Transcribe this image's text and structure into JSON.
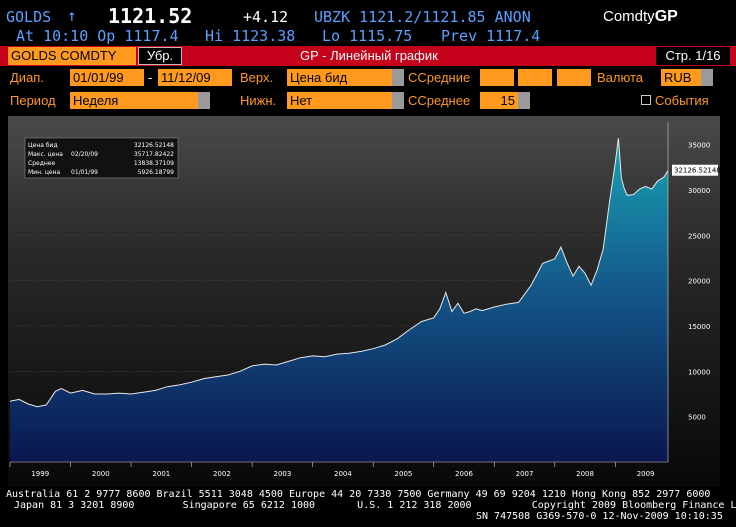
{
  "header": {
    "ticker": "GOLDS",
    "arrow": "↑",
    "price": "1121.52",
    "change": "+4.12",
    "source": "UBZK 1121.2/1121.85 ANON",
    "brand_prefix": "Comdty",
    "brand_func": "GP",
    "at_label": "At",
    "at_time": "10:10",
    "op_label": "Op",
    "op_value": "1117.4",
    "hi_label": "Hi",
    "hi_value": "1123.38",
    "lo_label": "Lo",
    "lo_value": "1115.75",
    "prev_label": "Prev",
    "prev_value": "1117.4"
  },
  "titlebar": {
    "security": "GOLDS COMDTY",
    "remove_button": "Убр.",
    "title": "GP - Линейный график",
    "page": "Стр. 1/16"
  },
  "controls": {
    "range_label": "Диап.",
    "date_from": "01/01/99",
    "date_sep": "-",
    "date_to": "11/12/09",
    "upper_label": "Верх.",
    "upper_value": "Цена бид",
    "ma_label": "ССредние",
    "currency_label": "Валюта",
    "currency_value": "RUB",
    "period_label": "Период",
    "period_value": "Неделя",
    "lower_label": "Нижн.",
    "lower_value": "Нет",
    "ma2_label": "ССреднее",
    "ma2_value": "15",
    "events_label": "События"
  },
  "colors": {
    "accent_orange": "#ff9a1f",
    "header_blue": "#5aa0ff",
    "title_red": "#c4001a"
  },
  "chart_data": {
    "type": "area",
    "x_start": 1999.0,
    "x_end": 2009.87,
    "ylim": [
      0,
      37500
    ],
    "y_ticks": [
      5000,
      10000,
      15000,
      20000,
      25000,
      30000,
      35000
    ],
    "x_tick_labels": [
      "1999",
      "2000",
      "2001",
      "2002",
      "2003",
      "2004",
      "2005",
      "2006",
      "2007",
      "2008",
      "2009"
    ],
    "last_value_label": "32126.52148",
    "stats": [
      {
        "label": "Цена бид",
        "date": "",
        "value": "32126.52148"
      },
      {
        "label": "Макс. цена",
        "date": "02/20/09",
        "value": "35717.82422"
      },
      {
        "label": "Среднее",
        "date": "",
        "value": "13838.37109"
      },
      {
        "label": "Мин. цена",
        "date": "01/01/99",
        "value": "5926.18799"
      }
    ],
    "series": [
      {
        "x": [
          1999.0,
          1999.15,
          1999.3,
          1999.45,
          1999.6,
          1999.75,
          1999.85,
          2000.0,
          2000.2,
          2000.4,
          2000.6,
          2000.8,
          2001.0,
          2001.2,
          2001.4,
          2001.6,
          2001.8,
          2002.0,
          2002.2,
          2002.4,
          2002.6,
          2002.8,
          2003.0,
          2003.2,
          2003.4,
          2003.6,
          2003.8,
          2004.0,
          2004.2,
          2004.4,
          2004.6,
          2004.8,
          2005.0,
          2005.2,
          2005.4,
          2005.6,
          2005.8,
          2006.0,
          2006.1,
          2006.2,
          2006.3,
          2006.4,
          2006.5,
          2006.6,
          2006.7,
          2006.8,
          2007.0,
          2007.2,
          2007.4,
          2007.6,
          2007.8,
          2008.0,
          2008.1,
          2008.2,
          2008.3,
          2008.4,
          2008.5,
          2008.6,
          2008.7,
          2008.8,
          2008.9,
          2009.0,
          2009.05,
          2009.1,
          2009.15,
          2009.2,
          2009.3,
          2009.4,
          2009.5,
          2009.6,
          2009.7,
          2009.8,
          2009.87
        ],
        "values": [
          6700,
          6900,
          6400,
          6100,
          6300,
          7800,
          8100,
          7600,
          7900,
          7500,
          7500,
          7600,
          7500,
          7700,
          7900,
          8300,
          8500,
          8800,
          9200,
          9400,
          9600,
          10000,
          10600,
          10800,
          10700,
          11100,
          11500,
          11700,
          11600,
          11900,
          12000,
          12200,
          12500,
          12900,
          13600,
          14600,
          15500,
          15900,
          16900,
          18700,
          16600,
          17500,
          16400,
          16600,
          16900,
          16700,
          17100,
          17400,
          17600,
          19400,
          21900,
          22400,
          23700,
          22000,
          20500,
          21600,
          20800,
          19500,
          21200,
          23500,
          28500,
          33000,
          35700,
          31300,
          30100,
          29400,
          29500,
          30100,
          30400,
          30100,
          31000,
          31400,
          32126
        ]
      }
    ]
  },
  "footer": {
    "line1": "Australia 61 2 9777 8600 Brazil 5511 3048 4500 Europe 44 20 7330 7500 Germany 49 69 9204 1210 Hong Kong 852 2977 6000",
    "line2": "Japan 81 3 3201 8900        Singapore 65 6212 1000       U.S. 1 212 318 2000          Copyright 2009 Bloomberg Finance L.P.",
    "line3": "SN 747508 G369-570-0 12-Nov-2009 10:10:35"
  }
}
